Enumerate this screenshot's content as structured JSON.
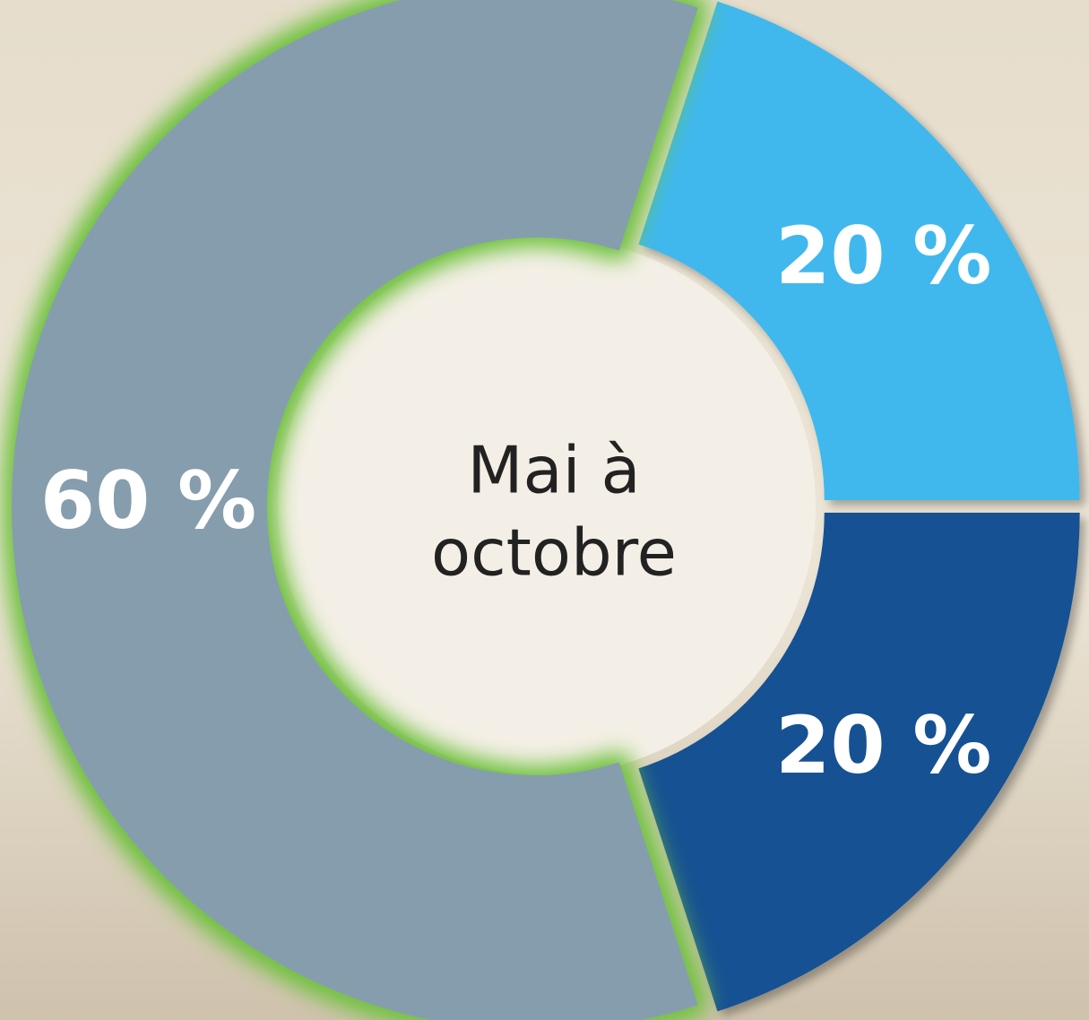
{
  "chart_data": {
    "type": "donut",
    "center_label": [
      "Mai à",
      "octobre"
    ],
    "categories": [
      null,
      null,
      null
    ],
    "values": [
      20,
      20,
      60
    ],
    "value_labels": [
      "20 %",
      "20 %",
      "60 %"
    ],
    "colors": [
      "#41b8ee",
      "#165193",
      "#869dae"
    ],
    "start_angle": 18
  }
}
